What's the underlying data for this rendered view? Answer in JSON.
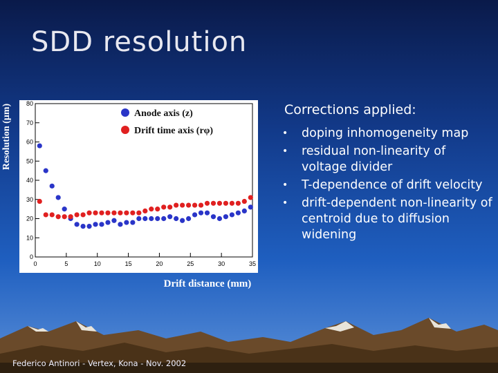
{
  "slide": {
    "title": "SDD resolution",
    "footer": "Federico Antinori - Vertex, Kona - Nov. 2002"
  },
  "corrections": {
    "heading": "Corrections applied:",
    "items": [
      "doping inhomogeneity map",
      "residual non-linearity of voltage divider",
      "T-dependence of drift velocity",
      "drift-dependent non-linearity of centroid due to diffusion widening"
    ]
  },
  "chart_data": {
    "type": "scatter",
    "xlabel": "Drift distance (mm)",
    "ylabel": "Resolution (µm)",
    "xlim": [
      0,
      35
    ],
    "ylim": [
      0,
      80
    ],
    "xticks": [
      0,
      5,
      10,
      15,
      20,
      25,
      30,
      35
    ],
    "yticks": [
      0,
      10,
      20,
      30,
      40,
      50,
      60,
      70,
      80
    ],
    "legend_position": "top-center",
    "series": [
      {
        "name": "Anode axis (z)",
        "color": "#2a35c8",
        "x": [
          0.7,
          1.7,
          2.7,
          3.7,
          4.7,
          5.7,
          6.7,
          7.7,
          8.7,
          9.7,
          10.7,
          11.7,
          12.7,
          13.7,
          14.7,
          15.7,
          16.7,
          17.7,
          18.7,
          19.7,
          20.7,
          21.7,
          22.7,
          23.7,
          24.7,
          25.7,
          26.7,
          27.7,
          28.7,
          29.7,
          30.7,
          31.7,
          32.7,
          33.7,
          34.7
        ],
        "y": [
          58,
          45,
          37,
          31,
          25,
          20,
          17,
          16,
          16,
          17,
          17,
          18,
          19,
          17,
          18,
          18,
          20,
          20,
          20,
          20,
          20,
          21,
          20,
          19,
          20,
          22,
          23,
          23,
          21,
          20,
          21,
          22,
          23,
          24,
          26
        ]
      },
      {
        "name": "Drift time axis (rφ)",
        "color": "#e02020",
        "x": [
          0.7,
          1.7,
          2.7,
          3.7,
          4.7,
          5.7,
          6.7,
          7.7,
          8.7,
          9.7,
          10.7,
          11.7,
          12.7,
          13.7,
          14.7,
          15.7,
          16.7,
          17.7,
          18.7,
          19.7,
          20.7,
          21.7,
          22.7,
          23.7,
          24.7,
          25.7,
          26.7,
          27.7,
          28.7,
          29.7,
          30.7,
          31.7,
          32.7,
          33.7,
          34.7
        ],
        "y": [
          29,
          22,
          22,
          21,
          21,
          21,
          22,
          22,
          23,
          23,
          23,
          23,
          23,
          23,
          23,
          23,
          23,
          24,
          25,
          25,
          26,
          26,
          27,
          27,
          27,
          27,
          27,
          28,
          28,
          28,
          28,
          28,
          28,
          29,
          31
        ]
      }
    ]
  }
}
